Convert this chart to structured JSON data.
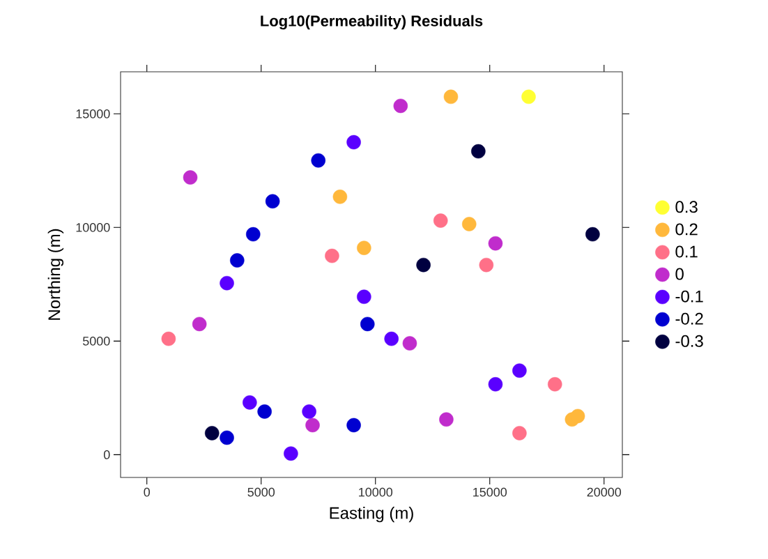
{
  "chart_data": {
    "type": "scatter",
    "title": "Log10(Permeability) Residuals",
    "xlabel": "Easting (m)",
    "ylabel": "Northing (m)",
    "xlim": [
      -1150,
      20800
    ],
    "ylim": [
      -1000,
      16850
    ],
    "xticks": [
      0,
      5000,
      10000,
      15000,
      20000
    ],
    "yticks": [
      0,
      5000,
      10000,
      15000
    ],
    "marker": "circle",
    "legend": "right",
    "grid": false,
    "series": [
      {
        "name": "0.3",
        "color": "#ffff33",
        "x": [
          16700
        ],
        "values": [
          15750
        ]
      },
      {
        "name": "0.2",
        "color": "#ffb83c",
        "x": [
          8450,
          9500,
          18600,
          18850,
          13300,
          14100
        ],
        "values": [
          11350,
          9100,
          1550,
          1700,
          15750,
          10150
        ]
      },
      {
        "name": "0.1",
        "color": "#ff7088",
        "x": [
          8100,
          950,
          17850,
          16300,
          12850,
          14850
        ],
        "values": [
          8750,
          5100,
          3100,
          950,
          10300,
          8350
        ]
      },
      {
        "name": "0",
        "color": "#c02ccc",
        "x": [
          1900,
          2300,
          7250,
          11500,
          13100,
          11100,
          15250
        ],
        "values": [
          12200,
          5750,
          1300,
          4900,
          1550,
          15350,
          9300
        ]
      },
      {
        "name": "-0.1",
        "color": "#5a00ff",
        "x": [
          9050,
          3500,
          9500,
          4500,
          7100,
          6300,
          10700,
          15250,
          16300
        ],
        "values": [
          13750,
          7550,
          6950,
          2300,
          1900,
          50,
          5100,
          3100,
          3700
        ]
      },
      {
        "name": "-0.2",
        "color": "#0000d0",
        "x": [
          7500,
          5500,
          4650,
          3950,
          9650,
          5150,
          3500,
          9050
        ],
        "values": [
          12950,
          11150,
          9700,
          8550,
          5750,
          1900,
          750,
          1300
        ]
      },
      {
        "name": "-0.3",
        "color": "#000040",
        "x": [
          2850,
          14500,
          19500,
          12100
        ],
        "values": [
          950,
          13350,
          9700,
          8350
        ]
      }
    ]
  }
}
